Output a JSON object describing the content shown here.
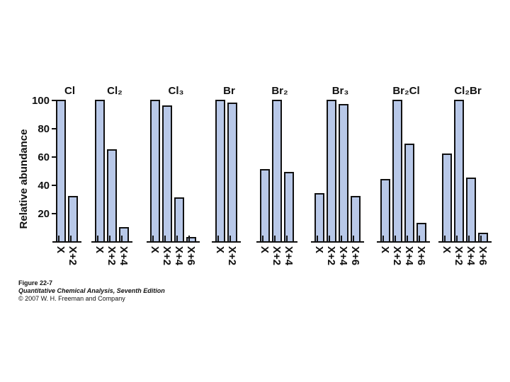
{
  "chart_data": [
    {
      "type": "bar",
      "title": "Cl",
      "categories": [
        "X",
        "X+2"
      ],
      "values": [
        100,
        32
      ],
      "ylim": [
        0,
        100
      ],
      "yticks": [
        20,
        40,
        60,
        80,
        100
      ],
      "ylabel": "Relative abundance",
      "color": "#b8c8e8"
    },
    {
      "type": "bar",
      "title": "Cl₂",
      "categories": [
        "X",
        "X+2",
        "X+4"
      ],
      "values": [
        100,
        65,
        10
      ],
      "ylim": [
        0,
        100
      ],
      "color": "#b8c8e8"
    },
    {
      "type": "bar",
      "title": "Cl₃",
      "categories": [
        "X",
        "X+2",
        "X+4",
        "X+6"
      ],
      "values": [
        100,
        96,
        31,
        3
      ],
      "ylim": [
        0,
        100
      ],
      "color": "#b8c8e8"
    },
    {
      "type": "bar",
      "title": "Br",
      "categories": [
        "X",
        "X+2"
      ],
      "values": [
        100,
        98
      ],
      "ylim": [
        0,
        100
      ],
      "color": "#b8c8e8"
    },
    {
      "type": "bar",
      "title": "Br₂",
      "categories": [
        "X",
        "X+2",
        "X+4"
      ],
      "values": [
        51,
        100,
        49
      ],
      "ylim": [
        0,
        100
      ],
      "color": "#b8c8e8"
    },
    {
      "type": "bar",
      "title": "Br₃",
      "categories": [
        "X",
        "X+2",
        "X+4",
        "X+6"
      ],
      "values": [
        34,
        100,
        97,
        32
      ],
      "ylim": [
        0,
        100
      ],
      "color": "#b8c8e8"
    },
    {
      "type": "bar",
      "title": "Br₂Cl",
      "categories": [
        "X",
        "X+2",
        "X+4",
        "X+6"
      ],
      "values": [
        44,
        100,
        69,
        13
      ],
      "ylim": [
        0,
        100
      ],
      "color": "#b8c8e8"
    },
    {
      "type": "bar",
      "title": "Cl₂Br",
      "categories": [
        "X",
        "X+2",
        "X+4",
        "X+6"
      ],
      "values": [
        62,
        100,
        45,
        6
      ],
      "ylim": [
        0,
        100
      ],
      "color": "#b8c8e8"
    }
  ],
  "caption": {
    "figure": "Figure 22-7",
    "book": "Quantitative Chemical Analysis, Seventh Edition",
    "copyright": "© 2007 W. H. Freeman and Company"
  }
}
